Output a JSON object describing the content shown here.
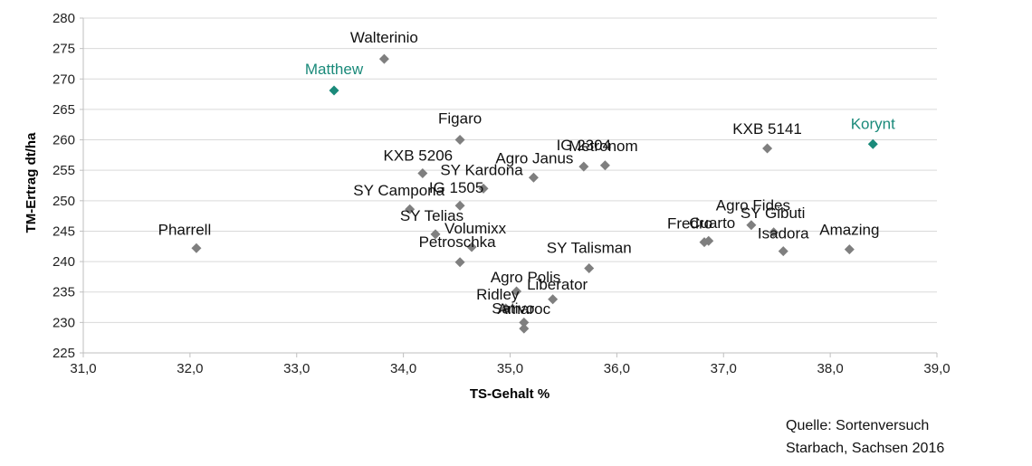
{
  "chart_data": {
    "type": "scatter",
    "xlabel": "TS-Gehalt %",
    "ylabel": "TM-Ertrag dt/ha",
    "xlim": [
      31,
      39
    ],
    "ylim": [
      225,
      280
    ],
    "x_ticks": [
      "31,0",
      "32,0",
      "33,0",
      "34,0",
      "35,0",
      "36,0",
      "37,0",
      "38,0",
      "39,0"
    ],
    "y_ticks": [
      "225",
      "230",
      "235",
      "240",
      "245",
      "250",
      "255",
      "260",
      "265",
      "270",
      "275",
      "280"
    ],
    "grid": "horizontal",
    "colors": {
      "default": "#7f7f7f",
      "highlight": "#1a8a7a",
      "grid": "#d9d9d9",
      "label": "#111111"
    },
    "points": [
      {
        "name": "Walterinio",
        "x": 33.82,
        "y": 273.3,
        "highlight": false
      },
      {
        "name": "Matthew",
        "x": 33.35,
        "y": 268.1,
        "highlight": true
      },
      {
        "name": "Figaro",
        "x": 34.53,
        "y": 260.0,
        "highlight": false
      },
      {
        "name": "KXB 5206",
        "x": 34.18,
        "y": 254.5,
        "highlight": false
      },
      {
        "name": "SY Kardona",
        "x": 34.75,
        "y": 252.0,
        "highlight": false
      },
      {
        "name": "Agro Janus",
        "x": 35.22,
        "y": 253.8,
        "highlight": false
      },
      {
        "name": "IG 2304",
        "x": 35.69,
        "y": 255.6,
        "highlight": false
      },
      {
        "name": "Metronom",
        "x": 35.89,
        "y": 255.8,
        "highlight": false
      },
      {
        "name": "KXB 5141",
        "x": 37.41,
        "y": 258.6,
        "highlight": false
      },
      {
        "name": "Korynt",
        "x": 38.4,
        "y": 259.3,
        "highlight": true
      },
      {
        "name": "SY Campona",
        "x": 34.06,
        "y": 248.6,
        "highlight": false
      },
      {
        "name": "IG 1505",
        "x": 34.53,
        "y": 249.2,
        "highlight": false
      },
      {
        "name": "SY Telias",
        "x": 34.3,
        "y": 244.5,
        "highlight": false
      },
      {
        "name": "Volumixx",
        "x": 34.64,
        "y": 242.4,
        "highlight": false
      },
      {
        "name": "Petroschka",
        "x": 34.53,
        "y": 239.9,
        "highlight": false
      },
      {
        "name": "Pharrell",
        "x": 32.06,
        "y": 242.2,
        "highlight": false
      },
      {
        "name": "SY Talisman",
        "x": 35.74,
        "y": 238.9,
        "highlight": false
      },
      {
        "name": "Agro Polis",
        "x": 35.06,
        "y": 235.1,
        "highlight": false
      },
      {
        "name": "Liberator",
        "x": 35.4,
        "y": 233.8,
        "highlight": false
      },
      {
        "name": "Ridley",
        "x": 34.96,
        "y": 232.3,
        "highlight": false
      },
      {
        "name": "Sativo",
        "x": 35.13,
        "y": 230.0,
        "highlight": false
      },
      {
        "name": "Amaroc",
        "x": 35.13,
        "y": 229.0,
        "highlight": false
      },
      {
        "name": "Agro Fides",
        "x": 37.26,
        "y": 246.0,
        "highlight": false
      },
      {
        "name": "Cuarto",
        "x": 36.86,
        "y": 243.4,
        "highlight": false
      },
      {
        "name": "Fredro",
        "x": 36.82,
        "y": 243.2,
        "highlight": false
      },
      {
        "name": "SY Gibuti",
        "x": 37.47,
        "y": 244.8,
        "highlight": false
      },
      {
        "name": "Isadora",
        "x": 37.56,
        "y": 241.7,
        "highlight": false
      },
      {
        "name": "Amazing",
        "x": 38.18,
        "y": 242.0,
        "highlight": false
      }
    ]
  },
  "source": {
    "line1": "Quelle:  Sortenversuch",
    "line2": "Starbach, Sachsen 2016"
  }
}
